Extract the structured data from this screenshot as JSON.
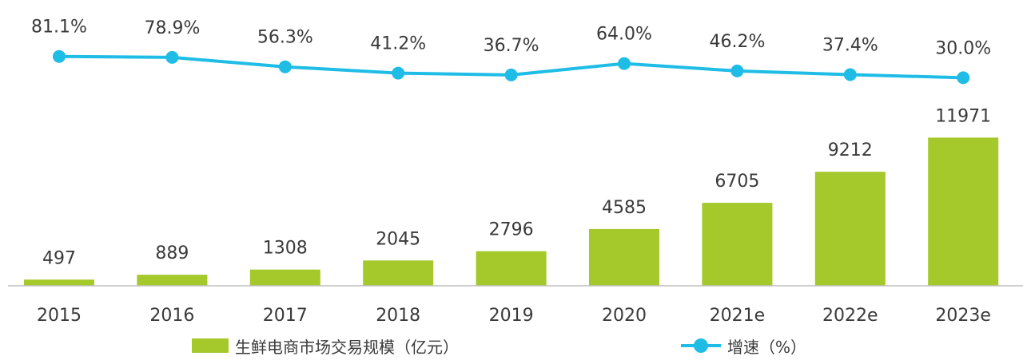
{
  "chart_data": {
    "type": "bar+line",
    "categories": [
      "2015",
      "2016",
      "2017",
      "2018",
      "2019",
      "2020",
      "2021e",
      "2022e",
      "2023e"
    ],
    "series": [
      {
        "name": "生鲜电商市场交易规模（亿元）",
        "type": "bar",
        "values": [
          497,
          889,
          1308,
          2045,
          2796,
          4585,
          6705,
          9212,
          11971
        ],
        "value_labels": [
          "497",
          "889",
          "1308",
          "2045",
          "2796",
          "4585",
          "6705",
          "9212",
          "11971"
        ]
      },
      {
        "name": "增速（%）",
        "type": "line",
        "values": [
          81.1,
          78.9,
          56.3,
          41.2,
          36.7,
          64.0,
          46.2,
          37.4,
          30.0
        ],
        "value_labels": [
          "81.1%",
          "78.9%",
          "56.3%",
          "41.2%",
          "36.7%",
          "64.0%",
          "46.2%",
          "37.4%",
          "30.0%"
        ]
      }
    ],
    "legend_position": "bottom",
    "grid": false,
    "colors": {
      "bar": "#a5c82a",
      "line": "#1fbde6",
      "axis": "#bfbfbf",
      "text": "#3a3a3a"
    }
  }
}
